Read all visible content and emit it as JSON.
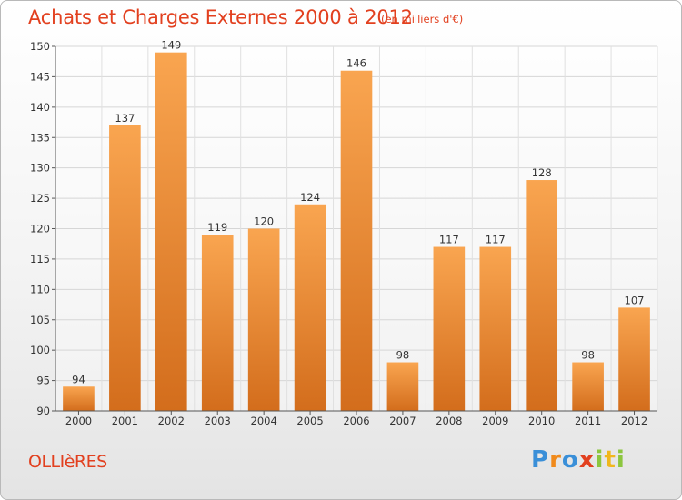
{
  "header": {
    "title": "Achats et Charges Externes 2000 à 2012",
    "unit": "(en milliers d'€)"
  },
  "commune": "OLLIèRES",
  "logo": {
    "letters": [
      "P",
      "r",
      "o",
      "x",
      "i",
      "t",
      "i"
    ],
    "colors": [
      "#3a8fd8",
      "#f08a1c",
      "#3a8fd8",
      "#e2401f",
      "#8cc63f",
      "#f0b71c",
      "#8cc63f"
    ]
  },
  "colors": {
    "accent": "#e2401f",
    "bar_top": "#f9a550",
    "bar_bottom": "#d36d1c"
  },
  "chart_data": {
    "type": "bar",
    "title": "Achats et Charges Externes 2000 à 2012",
    "subtitle": "(en milliers d'€)",
    "categories": [
      "2000",
      "2001",
      "2002",
      "2003",
      "2004",
      "2005",
      "2006",
      "2007",
      "2008",
      "2009",
      "2010",
      "2011",
      "2012"
    ],
    "values": [
      94,
      137,
      149,
      119,
      120,
      124,
      146,
      98,
      117,
      117,
      128,
      98,
      107
    ],
    "ylim": [
      90,
      150
    ],
    "yticks": [
      90,
      95,
      100,
      105,
      110,
      115,
      120,
      125,
      130,
      135,
      140,
      145,
      150
    ],
    "grid": true
  }
}
